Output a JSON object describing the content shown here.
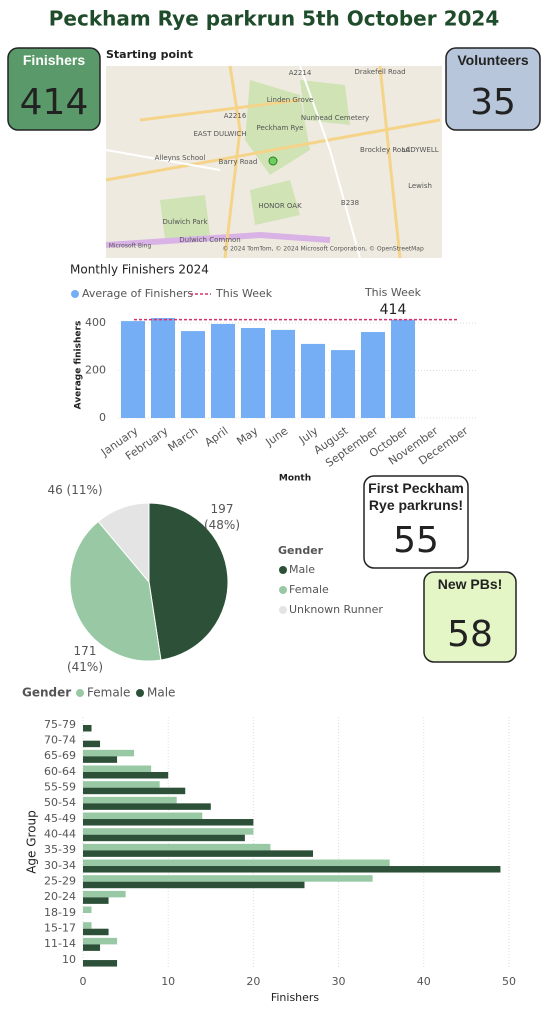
{
  "title": "Peckham Rye parkrun 5th October 2024",
  "cards": [
    {
      "label": "Finishers",
      "value": 414
    },
    {
      "label": "Volunteers",
      "value": 35
    },
    {
      "label": "First Peckham Rye parkruns!",
      "value": 55
    },
    {
      "label": "New PBs!",
      "value": 58
    }
  ],
  "map": {
    "title": "Starting point",
    "labels": [
      "A2214",
      "Drakefell Road",
      "Linden Grove",
      "Nunhead Cemetery",
      "A2216",
      "EAST DULWICH",
      "Alleyns School",
      "Barry Road",
      "Peckham Rye",
      "HONOR OAK",
      "B238",
      "Dulwich Park",
      "Dulwich Common",
      "Lewish",
      "LADYWELL",
      "Brockley Road",
      "Microsoft Bing",
      "© 2024 TomTom, © 2024 Microsoft Corporation, © OpenStreetMap"
    ]
  },
  "chart_data": [
    {
      "type": "bar",
      "title": "Monthly Finishers 2024",
      "x_label": "Month",
      "y_label": "Average finishers",
      "categories": [
        "January",
        "February",
        "March",
        "April",
        "May",
        "June",
        "July",
        "August",
        "September",
        "October",
        "November",
        "December"
      ],
      "series": [
        {
          "name": "Average of Finishers",
          "color": "#76aef5",
          "values": [
            408,
            421,
            366,
            396,
            379,
            371,
            312,
            286,
            362,
            414,
            null,
            null
          ]
        }
      ],
      "reference_line": {
        "name": "This Week",
        "label": "This Week",
        "value": 414,
        "color": "#d6336c"
      },
      "ylim": [
        0,
        460
      ],
      "yticks": [
        0,
        200,
        400
      ],
      "grid": true
    },
    {
      "type": "pie",
      "legend_title": "Gender",
      "categories": [
        "Male",
        "Female",
        "Unknown Runner"
      ],
      "values": [
        197,
        171,
        46
      ],
      "value_labels": [
        "197 (48%)",
        "171 (41%)",
        "46 (11%)"
      ],
      "colors": [
        "#2d5038",
        "#98c9a4",
        "#e4e4e4"
      ]
    },
    {
      "type": "hbar",
      "legend_title": "Gender",
      "x_label": "Finishers",
      "y_label": "Age Group",
      "categories": [
        "75-79",
        "70-74",
        "65-69",
        "60-64",
        "55-59",
        "50-54",
        "45-49",
        "40-44",
        "35-39",
        "30-34",
        "25-29",
        "20-24",
        "18-19",
        "15-17",
        "11-14",
        "10"
      ],
      "series": [
        {
          "name": "Female",
          "color": "#98c9a4",
          "values": [
            0,
            0,
            6,
            8,
            9,
            11,
            14,
            20,
            22,
            36,
            34,
            5,
            1,
            1,
            4,
            0
          ]
        },
        {
          "name": "Male",
          "color": "#2d5038",
          "values": [
            1,
            2,
            4,
            10,
            12,
            15,
            20,
            19,
            27,
            49,
            26,
            3,
            0,
            3,
            2,
            4
          ]
        }
      ],
      "xlim": [
        0,
        52
      ],
      "xticks": [
        0,
        10,
        20,
        30,
        40,
        50
      ],
      "grid": true
    }
  ]
}
